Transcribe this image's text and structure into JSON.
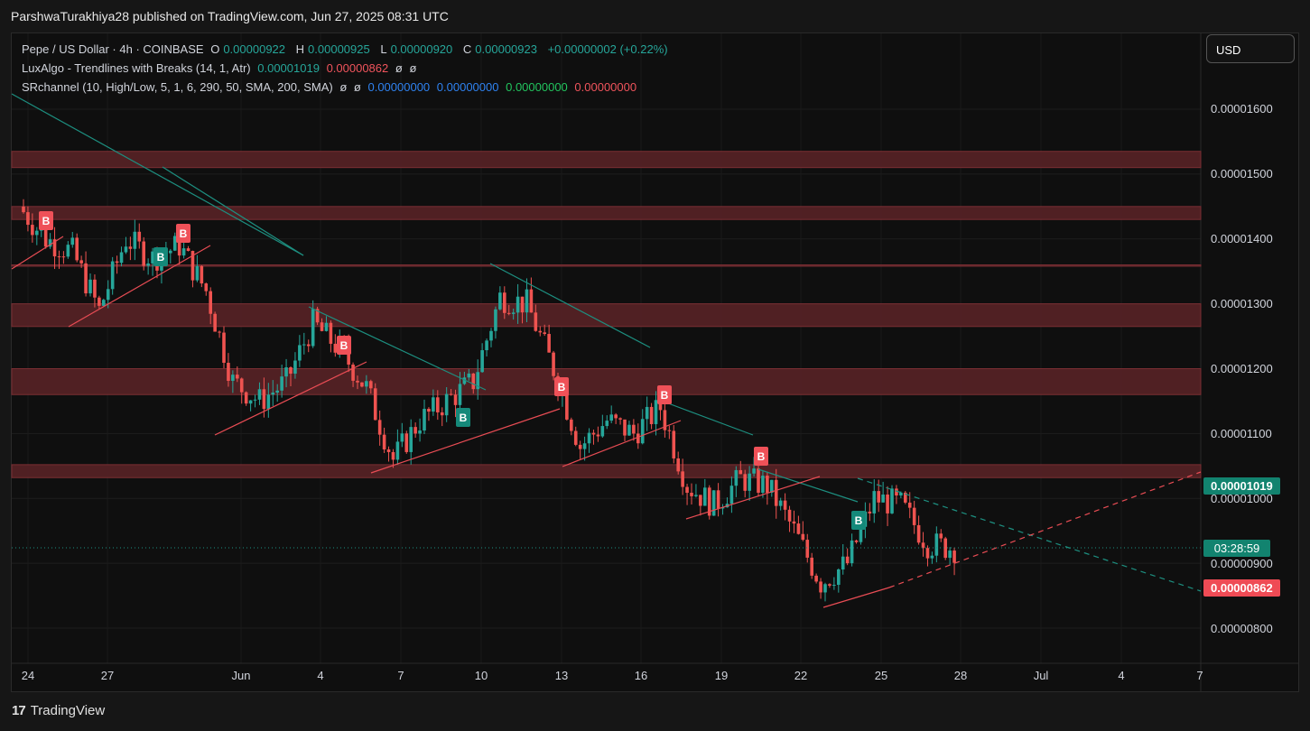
{
  "header": {
    "attribution": "ParshwaTurakhiya28 published on TradingView.com, Jun 27, 2025 08:31 UTC"
  },
  "legend": {
    "symbol": "Pepe / US Dollar · 4h · COINBASE",
    "o_label": "O",
    "o_value": "0.00000922",
    "h_label": "H",
    "h_value": "0.00000925",
    "l_label": "L",
    "l_value": "0.00000920",
    "c_label": "C",
    "c_value": "0.00000923",
    "change": "+0.00000002 (+0.22%)",
    "luxalgo_name": "LuxAlgo - Trendlines with Breaks (14, 1, Atr)",
    "luxalgo_v1": "0.00001019",
    "luxalgo_v2": "0.00000862",
    "luxalgo_na1": "ø",
    "luxalgo_na2": "ø",
    "sr_name": "SRchannel (10, High/Low, 5, 1, 6, 290, 50, SMA, 200, SMA)",
    "sr_na1": "ø",
    "sr_na2": "ø",
    "sr_v1": "0.00000000",
    "sr_v2": "0.00000000",
    "sr_v3": "0.00000000",
    "sr_v4": "0.00000000"
  },
  "currency": "USD",
  "price_axis": [
    "0.00001600",
    "0.00001500",
    "0.00001400",
    "0.00001300",
    "0.00001200",
    "0.00001100",
    "0.00001000",
    "0.00000900",
    "0.00000800"
  ],
  "tags": {
    "upper_trendline": "0.00001019",
    "countdown": "03:28:59",
    "lower_trendline": "0.00000862"
  },
  "time_axis": [
    "24",
    "27",
    "Jun",
    "4",
    "7",
    "10",
    "13",
    "16",
    "19",
    "22",
    "25",
    "28",
    "Jul",
    "4",
    "7"
  ],
  "break_label": "B",
  "branding": "TradingView",
  "colors": {
    "bull": "#26a69a",
    "bear": "#ef5350",
    "sr_zone": "#5c2327",
    "background": "#0f0f0f"
  },
  "chart_data": {
    "type": "candlestick",
    "series": [
      {
        "name": "Pepe / US Dollar",
        "timeframe": "4h"
      }
    ],
    "support_resistance_zones": [
      [
        1.51e-05,
        1.535e-05
      ],
      [
        1.43e-05,
        1.45e-05
      ],
      [
        1.36e-05,
        1.36e-05
      ],
      [
        1.265e-05,
        1.3e-05
      ],
      [
        1.16e-05,
        1.2e-05
      ],
      [
        1.032e-05,
        1.052e-05
      ]
    ],
    "current_price": 9.23e-06,
    "upper_trendline_value": 1.019e-05,
    "lower_trendline_value": 8.62e-06,
    "ylim": [
      7.4e-06,
      1.68e-05
    ],
    "grid": true,
    "close_path": [
      [
        "May 23",
        1.45e-05
      ],
      [
        "May 24",
        1.4e-05
      ],
      [
        "May 25",
        1.38e-05
      ],
      [
        "May 26",
        1.29e-05
      ],
      [
        "May 27",
        1.4e-05
      ],
      [
        "May 28",
        1.37e-05
      ],
      [
        "May 29",
        1.39e-05
      ],
      [
        "May 30",
        1.32e-05
      ],
      [
        "May 31",
        1.18e-05
      ],
      [
        "Jun 1",
        1.15e-05
      ],
      [
        "Jun 2",
        1.18e-05
      ],
      [
        "Jun 3",
        1.27e-05
      ],
      [
        "Jun 4",
        1.23e-05
      ],
      [
        "Jun 5",
        1.17e-05
      ],
      [
        "Jun 6",
        1.06e-05
      ],
      [
        "Jun 7",
        1.12e-05
      ],
      [
        "Jun 8",
        1.15e-05
      ],
      [
        "Jun 9",
        1.18e-05
      ],
      [
        "Jun 10",
        1.31e-05
      ],
      [
        "Jun 11",
        1.3e-05
      ],
      [
        "Jun 12",
        1.2e-05
      ],
      [
        "Jun 13",
        1.08e-05
      ],
      [
        "Jun 14",
        1.12e-05
      ],
      [
        "Jun 15",
        1.1e-05
      ],
      [
        "Jun 16",
        1.14e-05
      ],
      [
        "Jun 17",
        1.02e-05
      ],
      [
        "Jun 18",
        9.9e-06
      ],
      [
        "Jun 19",
        1.03e-05
      ],
      [
        "Jun 20",
        1.02e-05
      ],
      [
        "Jun 21",
        9.5e-06
      ],
      [
        "Jun 22",
        8.7e-06
      ],
      [
        "Jun 23",
        9e-06
      ],
      [
        "Jun 24",
        1e-05
      ],
      [
        "Jun 25",
        9.9e-06
      ],
      [
        "Jun 26",
        9.3e-06
      ],
      [
        "Jun 27",
        9.23e-06
      ]
    ]
  }
}
